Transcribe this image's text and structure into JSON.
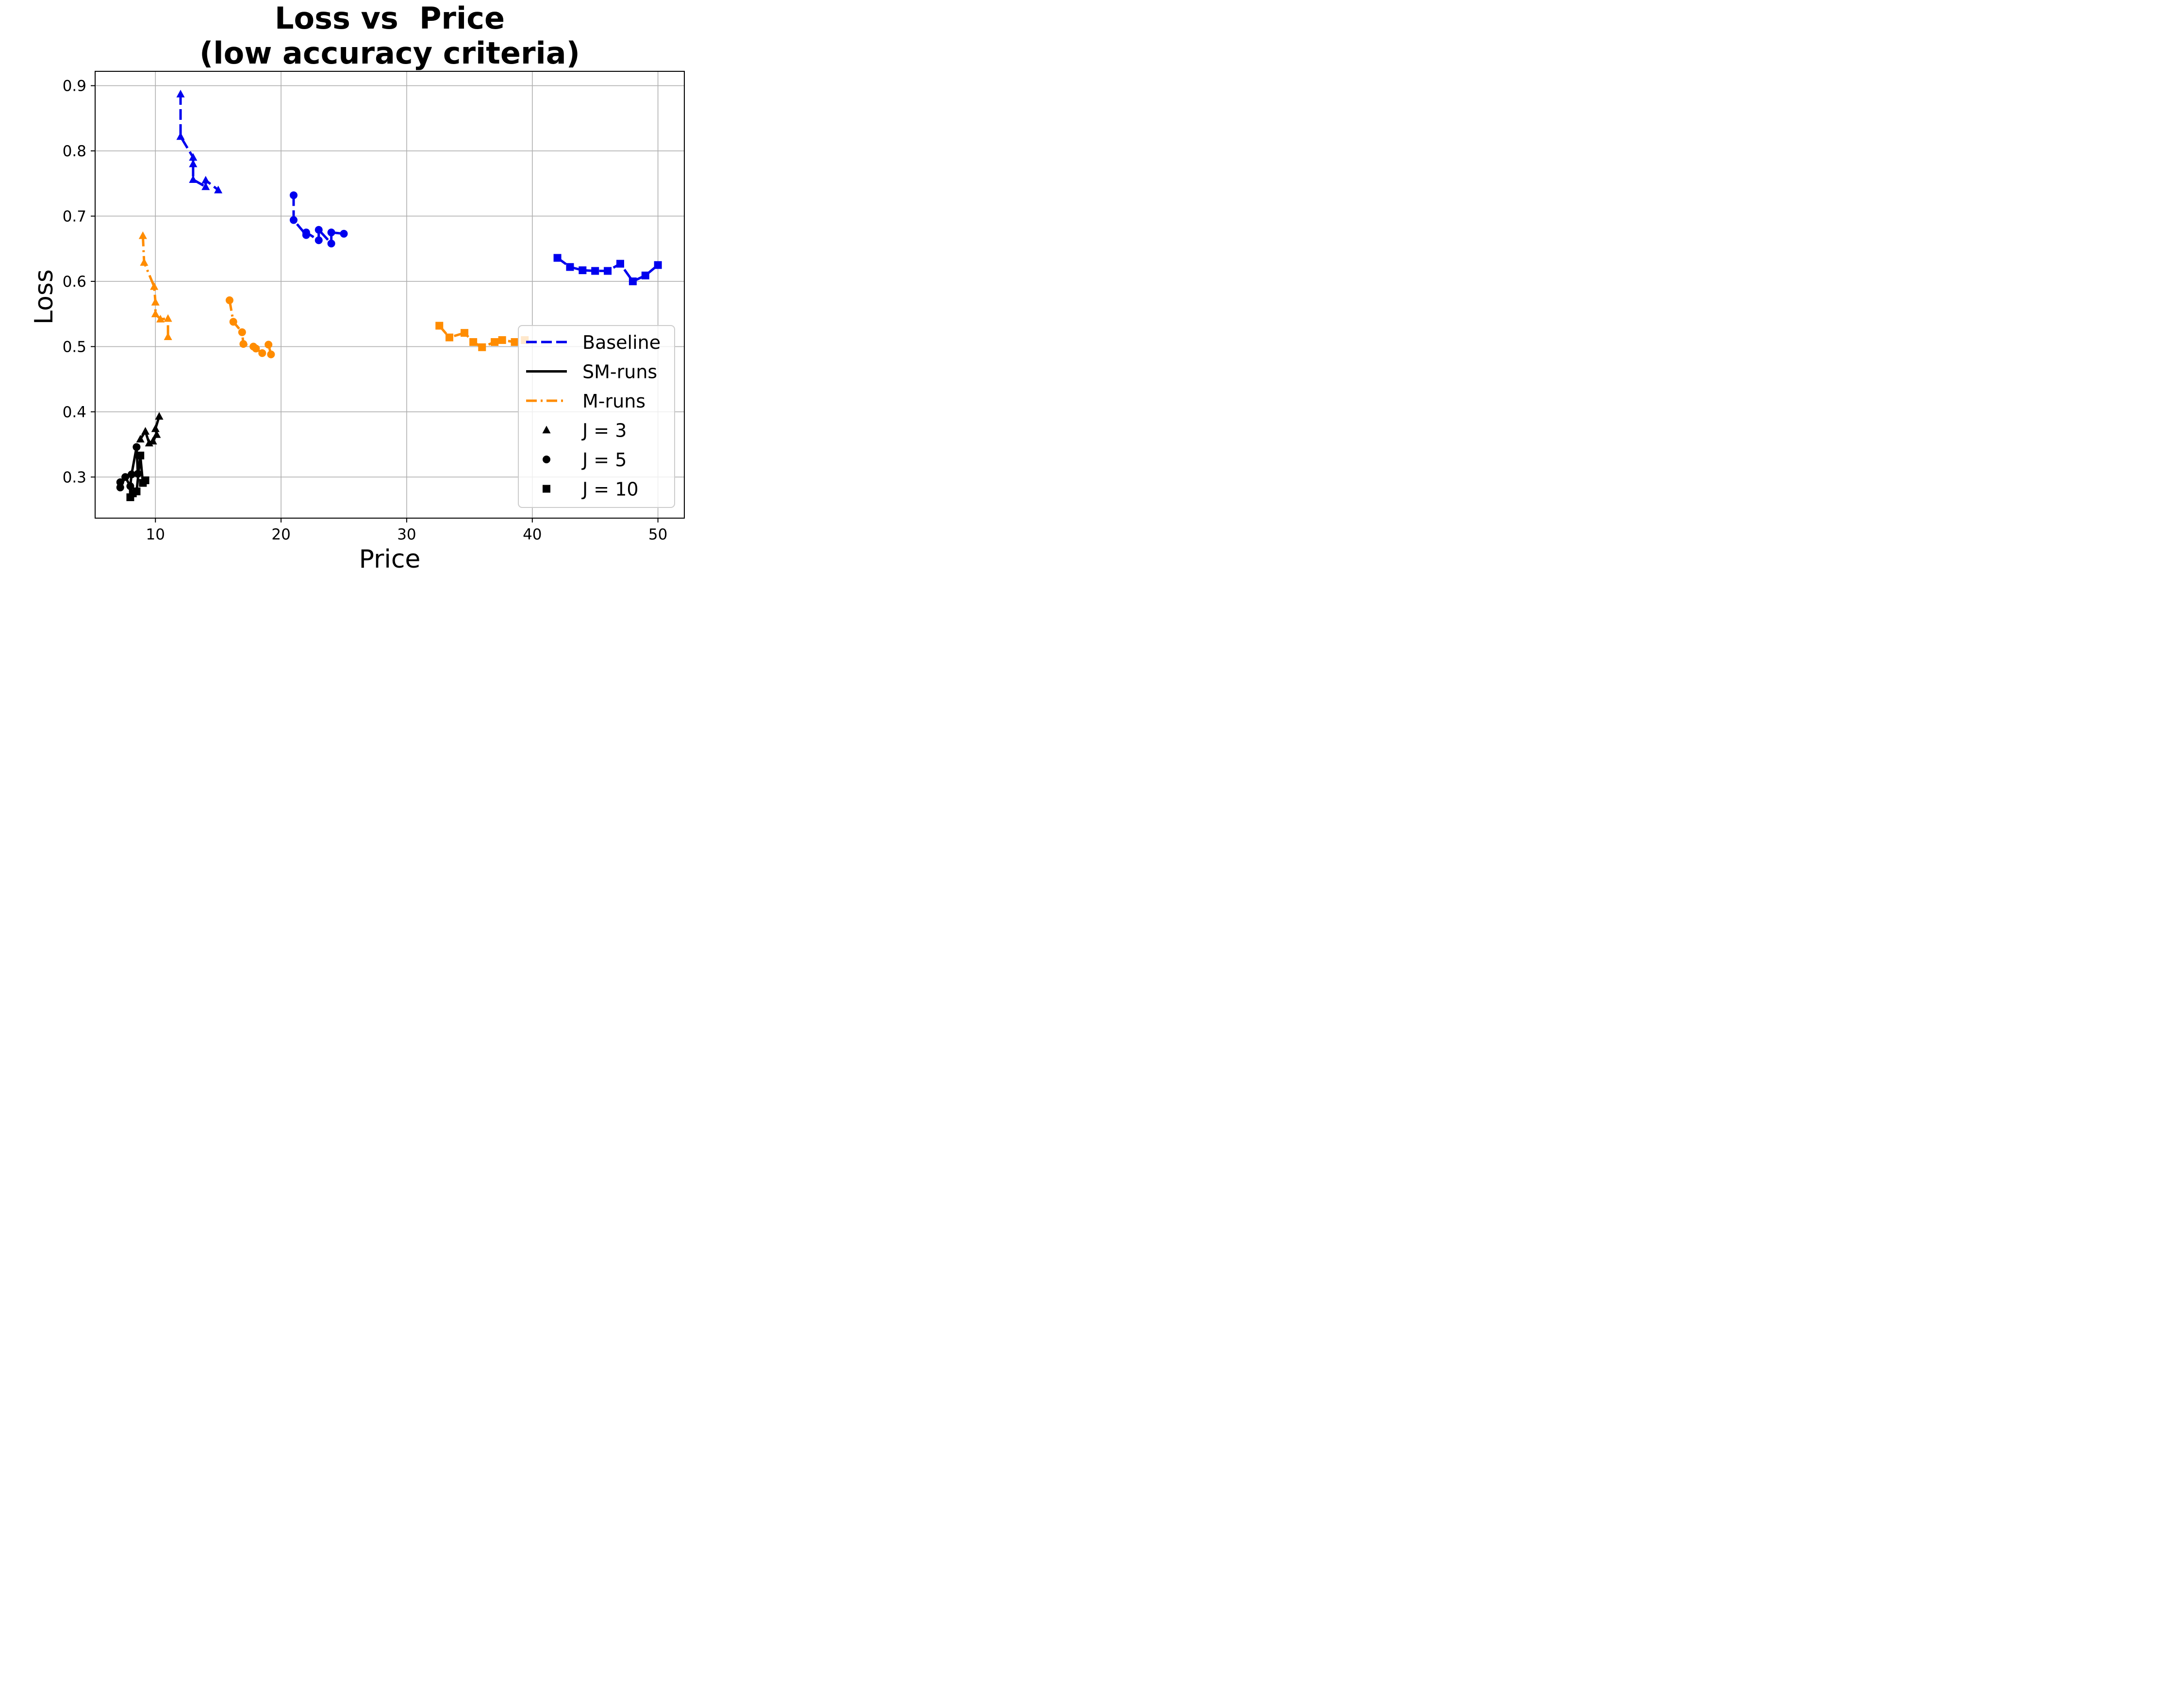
{
  "chart_data": {
    "type": "line",
    "title_line1": "Loss vs  Price",
    "title_line2": "(low accuracy criteria)",
    "xlabel": "Price",
    "ylabel": "Loss",
    "xlim": [
      5.2,
      52.1
    ],
    "ylim": [
      0.237,
      0.922
    ],
    "xticks": [
      10,
      20,
      30,
      40,
      50
    ],
    "yticks": [
      0.3,
      0.4,
      0.5,
      0.6,
      0.7,
      0.8,
      0.9
    ],
    "xtick_labels": [
      "10",
      "20",
      "30",
      "40",
      "50"
    ],
    "ytick_labels": [
      "0.3",
      "0.4",
      "0.5",
      "0.6",
      "0.7",
      "0.8",
      "0.9"
    ],
    "grid": true,
    "legend_position": "lower right",
    "legend": [
      {
        "label": "Baseline",
        "kind": "line",
        "color": "#0000ee",
        "dash": "dashed"
      },
      {
        "label": "SM-runs",
        "kind": "line",
        "color": "#000000",
        "dash": "solid"
      },
      {
        "label": "M-runs",
        "kind": "line",
        "color": "#ff8c00",
        "dash": "dashdot"
      },
      {
        "label": "J = 3",
        "kind": "marker",
        "marker": "triangle",
        "color": "#000000"
      },
      {
        "label": "J = 5",
        "kind": "marker",
        "marker": "circle",
        "color": "#000000"
      },
      {
        "label": "J = 10",
        "kind": "marker",
        "marker": "square",
        "color": "#000000"
      }
    ],
    "series": [
      {
        "group": "Baseline",
        "J": 3,
        "color": "#0000ee",
        "dash": "dashed",
        "marker": "triangle",
        "x": [
          12.0,
          12.0,
          13.0,
          13.0,
          13.0,
          14.0,
          14.0,
          15.0
        ],
        "y": [
          0.887,
          0.822,
          0.79,
          0.78,
          0.756,
          0.745,
          0.755,
          0.74
        ]
      },
      {
        "group": "Baseline",
        "J": 5,
        "color": "#0000ee",
        "dash": "dashed",
        "marker": "circle",
        "x": [
          21.0,
          21.0,
          22.0,
          22.0,
          23.0,
          23.0,
          24.0,
          24.0,
          25.0
        ],
        "y": [
          0.732,
          0.694,
          0.671,
          0.675,
          0.663,
          0.679,
          0.658,
          0.675,
          0.673
        ]
      },
      {
        "group": "Baseline",
        "J": 10,
        "color": "#0000ee",
        "dash": "dashed",
        "marker": "square",
        "x": [
          42.0,
          43.0,
          44.0,
          45.0,
          46.0,
          47.0,
          48.0,
          49.0,
          50.0
        ],
        "y": [
          0.636,
          0.622,
          0.617,
          0.616,
          0.616,
          0.627,
          0.6,
          0.609,
          0.625
        ]
      },
      {
        "group": "M-runs",
        "J": 3,
        "color": "#ff8c00",
        "dash": "dashdot",
        "marker": "triangle",
        "x": [
          9.0,
          9.1,
          9.9,
          10.0,
          10.0,
          10.4,
          11.0,
          11.0
        ],
        "y": [
          0.67,
          0.629,
          0.592,
          0.568,
          0.55,
          0.542,
          0.543,
          0.515
        ]
      },
      {
        "group": "M-runs",
        "J": 5,
        "color": "#ff8c00",
        "dash": "dashdot",
        "marker": "circle",
        "x": [
          15.9,
          16.2,
          16.9,
          17.0,
          17.8,
          18.0,
          18.5,
          19.0,
          19.2
        ],
        "y": [
          0.571,
          0.538,
          0.522,
          0.504,
          0.5,
          0.497,
          0.49,
          0.503,
          0.488
        ]
      },
      {
        "group": "M-runs",
        "J": 10,
        "color": "#ff8c00",
        "dash": "dashdot",
        "marker": "square",
        "x": [
          32.6,
          33.4,
          34.6,
          35.3,
          36.0,
          37.0,
          37.6,
          38.6,
          39.4
        ],
        "y": [
          0.532,
          0.514,
          0.521,
          0.507,
          0.499,
          0.507,
          0.51,
          0.507,
          0.51
        ]
      },
      {
        "group": "SM-runs",
        "J": 3,
        "color": "#000000",
        "dash": "solid",
        "marker": "triangle",
        "x": [
          8.8,
          9.2,
          9.5,
          9.8,
          10.1,
          10.0,
          10.3
        ],
        "y": [
          0.358,
          0.37,
          0.352,
          0.355,
          0.365,
          0.374,
          0.393
        ]
      },
      {
        "group": "SM-runs",
        "J": 5,
        "color": "#000000",
        "dash": "solid",
        "marker": "circle",
        "x": [
          7.2,
          7.2,
          7.6,
          8.0,
          8.1,
          8.5,
          8.6
        ],
        "y": [
          0.292,
          0.284,
          0.3,
          0.286,
          0.304,
          0.346,
          0.305
        ]
      },
      {
        "group": "SM-runs",
        "J": 10,
        "color": "#000000",
        "dash": "solid",
        "marker": "square",
        "x": [
          8.0,
          8.2,
          8.5,
          8.8,
          9.0,
          9.2
        ],
        "y": [
          0.269,
          0.275,
          0.278,
          0.333,
          0.291,
          0.295
        ]
      }
    ]
  }
}
